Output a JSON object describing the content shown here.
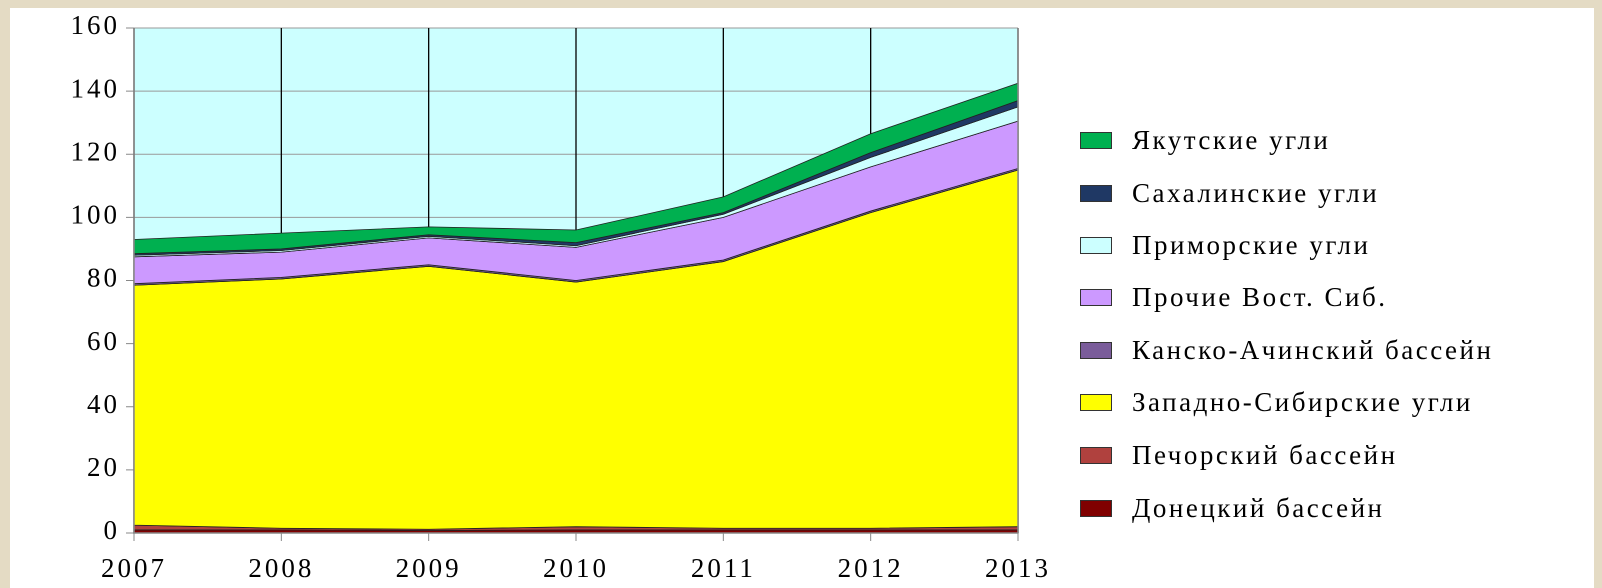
{
  "chart_data": {
    "type": "stacked_area",
    "x": [
      2007,
      2008,
      2009,
      2010,
      2011,
      2012,
      2013
    ],
    "xlim": [
      2007,
      2013
    ],
    "xticks": [
      2007,
      2008,
      2009,
      2010,
      2011,
      2012,
      2013
    ],
    "ylim": [
      0,
      160
    ],
    "yticks": [
      0,
      20,
      40,
      60,
      80,
      100,
      120,
      140,
      160
    ],
    "grid": true,
    "background": "#ccffff",
    "legend": "right",
    "series": [
      {
        "name": "Донецкий бассейн",
        "color": "#800000",
        "values": [
          1,
          1,
          0.8,
          1,
          1,
          1,
          1
        ]
      },
      {
        "name": "Печорский бассейн",
        "color": "#b0413e",
        "values": [
          1.5,
          0.5,
          0.4,
          1,
          0.5,
          0.5,
          1
        ]
      },
      {
        "name": "Западно-Сибирские угли",
        "color": "#ffff00",
        "values": [
          76,
          79,
          83.3,
          77.5,
          84.5,
          100,
          113
        ]
      },
      {
        "name": "Канско-Ачинский бассейн",
        "color": "#7a5c9a",
        "values": [
          0.5,
          0.5,
          0.5,
          0.5,
          0.5,
          0.5,
          0.5
        ]
      },
      {
        "name": "Прочие Вост. Сиб.",
        "color": "#cc99ff",
        "values": [
          8.5,
          8,
          8.5,
          10.5,
          13.5,
          14,
          15
        ]
      },
      {
        "name": "Приморские угли",
        "color": "#ccffff",
        "values": [
          0.5,
          0.5,
          0.5,
          0.5,
          1,
          3,
          4.5
        ]
      },
      {
        "name": "Сахалинские угли",
        "color": "#1f3864",
        "values": [
          0.5,
          0.5,
          0.5,
          1,
          0.5,
          1.5,
          2
        ]
      },
      {
        "name": "Якутские угли",
        "color": "#00b050",
        "values": [
          4.5,
          5,
          2.5,
          4,
          5,
          6,
          5.5
        ]
      }
    ]
  }
}
